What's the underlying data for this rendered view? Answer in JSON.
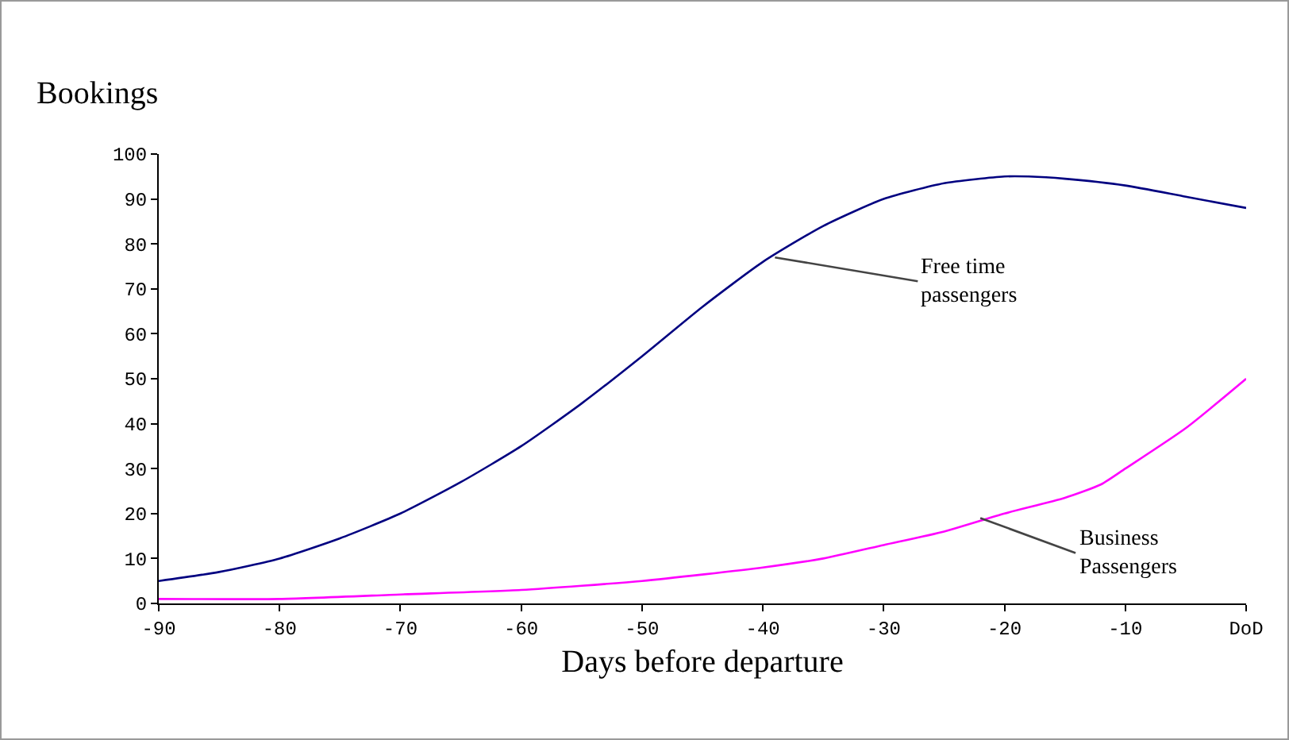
{
  "chart_data": {
    "type": "line",
    "xlabel": "Days before departure",
    "ylabel": "Bookings",
    "x": [
      -90,
      -85,
      -80,
      -75,
      -70,
      -65,
      -60,
      -55,
      -50,
      -45,
      -40,
      -35,
      -30,
      -25,
      -20,
      -18,
      -15,
      -10,
      -5,
      0
    ],
    "series": [
      {
        "color": "#000080",
        "values": [
          5,
          7,
          10,
          14.5,
          20,
          27,
          35,
          44.5,
          55,
          66,
          76,
          84,
          90,
          93.5,
          95,
          95,
          94.5,
          93,
          90.5,
          88
        ]
      },
      {
        "color": "#ff00ff",
        "x": [
          -90,
          -80,
          -70,
          -60,
          -50,
          -40,
          -35,
          -30,
          -25,
          -20,
          -15,
          -12,
          -10,
          -5,
          0
        ],
        "values": [
          1,
          1,
          2,
          3,
          5,
          8,
          10,
          13,
          16,
          20,
          23.5,
          26.5,
          30,
          39,
          50
        ]
      }
    ],
    "xlim": [
      -90,
      0
    ],
    "xticks": [
      -90,
      -80,
      -70,
      -60,
      -50,
      -40,
      -30,
      -20,
      -10,
      {
        "value": 0,
        "label": "DoD"
      }
    ],
    "ylim": [
      0,
      100
    ],
    "yticks": [
      0,
      10,
      20,
      30,
      40,
      50,
      60,
      70,
      80,
      90,
      100
    ],
    "grid": false,
    "marker": "none",
    "line_style": "solid",
    "annotations": [
      {
        "text": "Free time\npassengers",
        "x": -39,
        "y": 77
      },
      {
        "text": "Business\nPassengers",
        "x": -22,
        "y": 19
      }
    ]
  }
}
